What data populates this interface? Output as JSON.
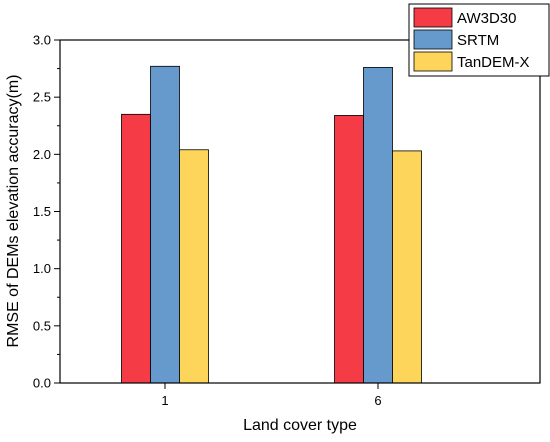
{
  "chart_data": {
    "type": "bar",
    "categories": [
      "1",
      "6"
    ],
    "series": [
      {
        "name": "AW3D30",
        "values": [
          2.35,
          2.34
        ],
        "color": "#f53c46"
      },
      {
        "name": "SRTM",
        "values": [
          2.77,
          2.76
        ],
        "color": "#6699cc"
      },
      {
        "name": "TanDEM-X",
        "values": [
          2.04,
          2.03
        ],
        "color": "#fdd55a"
      }
    ],
    "xlabel": "Land cover type",
    "ylabel": "RMSE of DEMs elevation accuracy(m)",
    "ylim": [
      0,
      3.0
    ],
    "yticks": [
      "0.0",
      "0.5",
      "1.0",
      "1.5",
      "2.0",
      "2.5",
      "3.0"
    ],
    "legend_position": "top-right",
    "grid": false
  }
}
